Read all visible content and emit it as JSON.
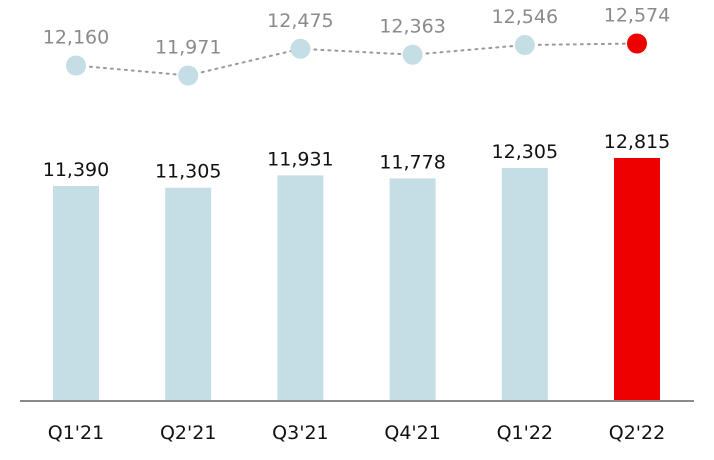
{
  "chart_data": {
    "type": "bar",
    "categories": [
      "Q1'21",
      "Q2'21",
      "Q3'21",
      "Q4'21",
      "Q1'22",
      "Q2'22"
    ],
    "series": [
      {
        "type": "bar",
        "values": [
          11390,
          11305,
          11931,
          11778,
          12305,
          12815
        ],
        "color": "#c5dde5",
        "highlight_color": "#ee0000"
      },
      {
        "type": "line",
        "style": "dotted",
        "values": [
          12160,
          11971,
          12475,
          12363,
          12546,
          12574
        ],
        "color": "#c5dde5",
        "highlight_color": "#ee0000"
      }
    ],
    "value_labels": {
      "bars": [
        "11,390",
        "11,305",
        "11,931",
        "11,778",
        "12,305",
        "12,815"
      ],
      "dots": [
        "12,160",
        "11,971",
        "12,475",
        "12,363",
        "12,546",
        "12,574"
      ]
    },
    "highlight_index": 5,
    "line_color": "#999999",
    "axis_color": "#8a8a8a",
    "grid": false,
    "legend": "none"
  }
}
